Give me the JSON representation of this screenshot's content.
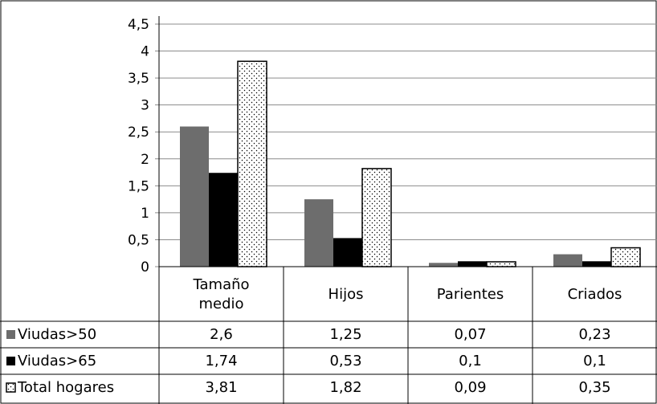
{
  "chart_data": {
    "type": "bar",
    "categories": [
      [
        "Tamaño",
        "medio"
      ],
      [
        "Hijos"
      ],
      [
        "Parientes"
      ],
      [
        "Criados"
      ]
    ],
    "series": [
      {
        "name": "Viudas>50",
        "values": [
          2.6,
          1.25,
          0.07,
          0.23
        ],
        "labels": [
          "2,6",
          "1,25",
          "0,07",
          "0,23"
        ],
        "color": "#6d6d6d",
        "pattern": "solid"
      },
      {
        "name": "Viudas>65",
        "values": [
          1.74,
          0.53,
          0.1,
          0.1
        ],
        "labels": [
          "1,74",
          "0,53",
          "0,1",
          "0,1"
        ],
        "color": "#000000",
        "pattern": "solid"
      },
      {
        "name": "Total hogares",
        "values": [
          3.81,
          1.82,
          0.09,
          0.35
        ],
        "labels": [
          "3,81",
          "1,82",
          "0,09",
          "0,35"
        ],
        "color": "#ffffff",
        "pattern": "dotted"
      }
    ],
    "ylim": [
      0,
      4.5
    ],
    "y_ticks": [
      0,
      0.5,
      1,
      1.5,
      2,
      2.5,
      3,
      3.5,
      4,
      4.5
    ],
    "y_tick_labels": [
      "0",
      "0,5",
      "1",
      "1,5",
      "2",
      "2,5",
      "3",
      "3,5",
      "4",
      "4,5"
    ],
    "grid": true,
    "legend": "data-table-below",
    "title": "",
    "xlabel": "",
    "ylabel": ""
  }
}
